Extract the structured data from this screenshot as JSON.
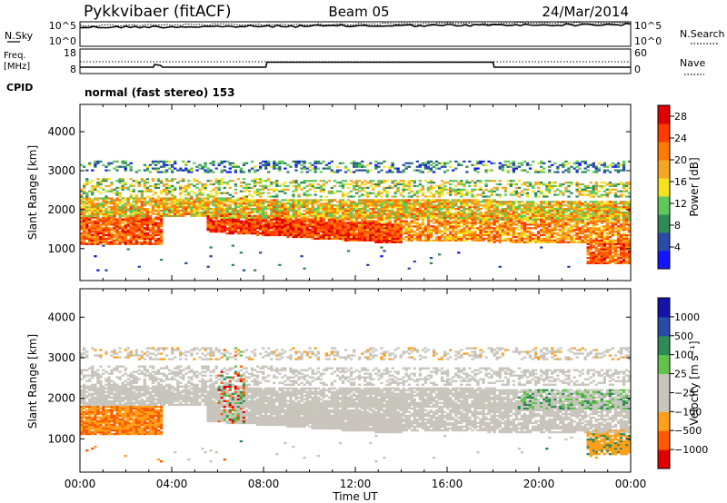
{
  "header": {
    "station": "Pykkvibaer (fitACF)",
    "beam": "Beam 05",
    "date": "24/Mar/2014"
  },
  "strip1": {
    "left_label": "N.Sky",
    "left_ticks": [
      "10^5",
      "10^0"
    ],
    "right_ticks": [
      "10^5",
      "10^0"
    ],
    "right_label": "N.Search"
  },
  "strip2": {
    "left_label_1": "Freq.",
    "left_label_2": "[MHz]",
    "left_ticks": [
      "18",
      "8"
    ],
    "right_ticks": [
      "60",
      "0"
    ],
    "right_label": "Nave"
  },
  "cpid": {
    "label": "CPID",
    "text": "normal (fast stereo) 153"
  },
  "colors": {
    "power": [
      "#1414ff",
      "#2b4ba8",
      "#2e8a57",
      "#5fc85a",
      "#f5e11c",
      "#f5a623",
      "#ff7a00",
      "#ff3a00",
      "#e00000"
    ],
    "velocity": [
      "#e00000",
      "#ff5a00",
      "#ff9f1a",
      "#c8c5bd",
      "#c8c5bd",
      "#62c24a",
      "#2e8a57",
      "#2b4ba8",
      "#1414aa"
    ]
  },
  "chart_data": [
    {
      "type": "heatmap",
      "title": "",
      "xlabel": "Time UT",
      "ylabel": "Slant Range [km]",
      "x_tick_labels": [
        "00:00",
        "04:00",
        "08:00",
        "12:00",
        "16:00",
        "20:00",
        "00:00"
      ],
      "y_ticks": [
        1000,
        2000,
        3000,
        4000
      ],
      "xlim_hours": [
        0,
        24
      ],
      "ylim": [
        180,
        4700
      ],
      "colorbar": {
        "label": "Power [dB]",
        "ticks": [
          "4",
          "8",
          "12",
          "16",
          "20",
          "24",
          "28"
        ],
        "range": [
          0,
          30
        ]
      }
    },
    {
      "type": "heatmap",
      "title": "",
      "xlabel": "Time UT",
      "ylabel": "Slant Range [km]",
      "x_tick_labels": [
        "00:00",
        "04:00",
        "08:00",
        "12:00",
        "16:00",
        "20:00",
        "00:00"
      ],
      "y_ticks": [
        1000,
        2000,
        3000,
        4000
      ],
      "xlim_hours": [
        0,
        24
      ],
      "ylim": [
        180,
        4700
      ],
      "colorbar": {
        "label": "Velocity [m s⁻¹]",
        "ticks": [
          "1000",
          "500",
          "100",
          "25",
          "−25",
          "−100",
          "−500",
          "−1000"
        ]
      }
    }
  ]
}
